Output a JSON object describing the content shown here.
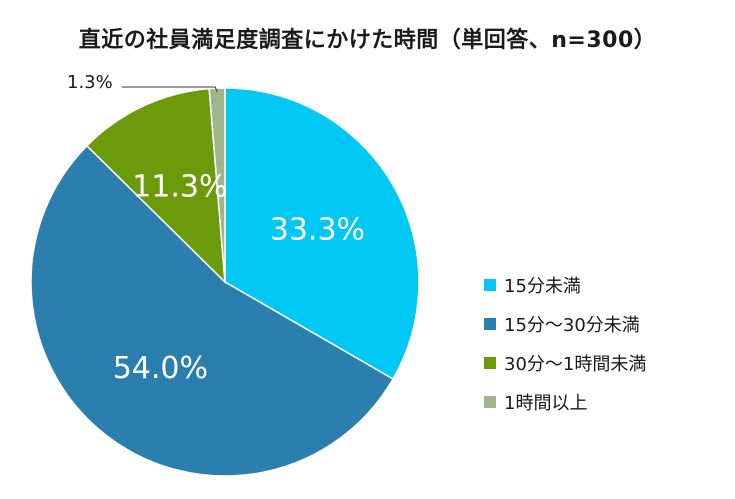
{
  "chart_data": {
    "type": "pie",
    "title": "直近の社員満足度調査にかけた時間（単回答、n=300）",
    "categories": [
      "15分未満",
      "15分～30分未満",
      "30分～1時間未満",
      "1時間以上"
    ],
    "values": [
      33.3,
      54.0,
      11.3,
      1.3
    ],
    "labels": [
      "33.3%",
      "54.0%",
      "11.3%",
      "1.3%"
    ],
    "colors": [
      "#00c8f5",
      "#2a7fae",
      "#6b9a0a",
      "#a0b58e"
    ],
    "start_angle": "12 o'clock",
    "direction": "clockwise",
    "legend_position": "right"
  }
}
